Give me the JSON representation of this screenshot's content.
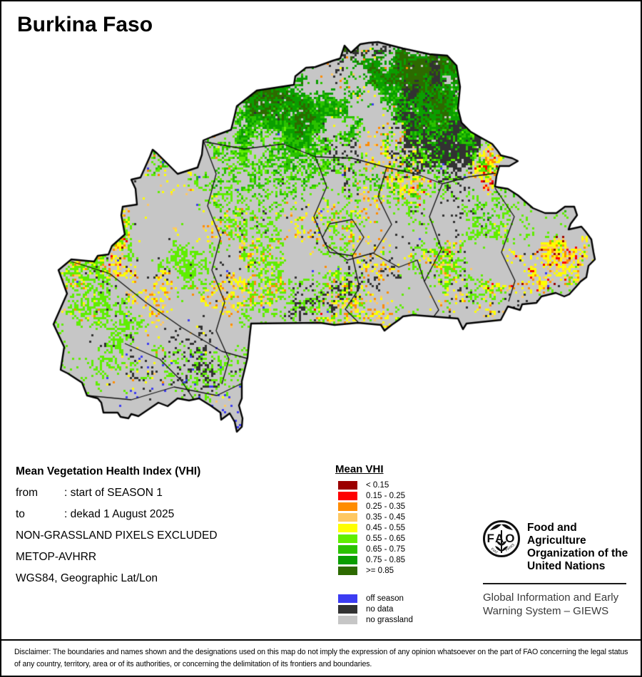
{
  "page": {
    "title": "Burkina Faso"
  },
  "info": {
    "heading": "Mean Vegetation Health Index (VHI)",
    "period": [
      {
        "label": "from",
        "sep": ":",
        "value": "start of SEASON 1"
      },
      {
        "label": "to",
        "sep": ":",
        "value": "dekad 1 August 2025"
      }
    ],
    "notes": [
      "NON-GRASSLAND PIXELS EXCLUDED",
      "METOP-AVHRR",
      "WGS84, Geographic Lat/Lon"
    ]
  },
  "legend": {
    "title": "Mean VHI",
    "classes": [
      {
        "label": "< 0.15",
        "color": "#9b0000"
      },
      {
        "label": "0.15 - 0.25",
        "color": "#fe0000"
      },
      {
        "label": "0.25 - 0.35",
        "color": "#ff8c00"
      },
      {
        "label": "0.35 - 0.45",
        "color": "#fec862"
      },
      {
        "label": "0.45 - 0.55",
        "color": "#feff00"
      },
      {
        "label": "0.55 - 0.65",
        "color": "#5fee00"
      },
      {
        "label": "0.65 - 0.75",
        "color": "#2bc200"
      },
      {
        "label": "0.75 - 0.85",
        "color": "#0a9e00"
      },
      {
        "label": ">= 0.85",
        "color": "#2d6a00"
      }
    ],
    "extras": [
      {
        "label": "off season",
        "color": "#3c3cf2"
      },
      {
        "label": "no data",
        "color": "#323232"
      },
      {
        "label": "no grassland",
        "color": "#c6c6c6"
      }
    ]
  },
  "branding": {
    "logo_acronym": "FAO",
    "logo_motto_left": "FIAT",
    "logo_motto_right": "PANIS",
    "org_lines": [
      "Food and Agriculture",
      "Organization of the",
      "United Nations"
    ],
    "giews_lines": [
      "Global Information and Early",
      "Warning System – GIEWS"
    ]
  },
  "footer": {
    "disclaimer": "Disclaimer: The boundaries and names shown and the designations used on this map do not imply the expression of any opinion whatsoever on the part of FAO concerning the legal status of any country, territory, area or of its authorities, or concerning the delimitation of its frontiers and boundaries."
  }
}
